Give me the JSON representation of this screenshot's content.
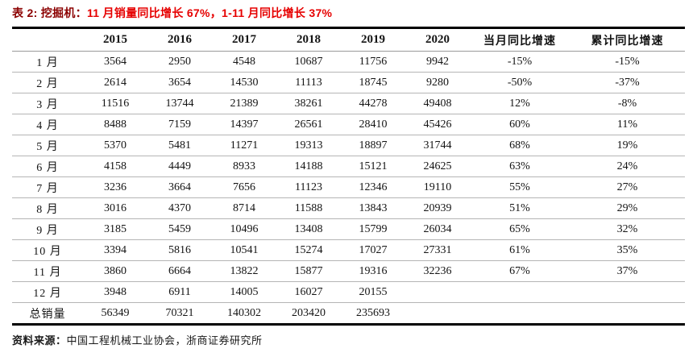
{
  "title": {
    "prefix": "表 2: 挖掘机：",
    "highlight": "11 月销量同比增长 67%，1-11 月同比增长 37%"
  },
  "colors": {
    "title_prefix": "#8b0000",
    "title_highlight": "#e60000",
    "thick_rule": "#000000",
    "thin_rule": "#b5b5b5"
  },
  "table": {
    "columns": [
      "",
      "2015",
      "2016",
      "2017",
      "2018",
      "2019",
      "2020",
      "当月同比增速",
      "累计同比增速"
    ],
    "rows": [
      {
        "label": "1 月",
        "values": [
          "3564",
          "2950",
          "4548",
          "10687",
          "11756",
          "9942",
          "-15%",
          "-15%"
        ]
      },
      {
        "label": "2 月",
        "values": [
          "2614",
          "3654",
          "14530",
          "11113",
          "18745",
          "9280",
          "-50%",
          "-37%"
        ]
      },
      {
        "label": "3 月",
        "values": [
          "11516",
          "13744",
          "21389",
          "38261",
          "44278",
          "49408",
          "12%",
          "-8%"
        ]
      },
      {
        "label": "4 月",
        "values": [
          "8488",
          "7159",
          "14397",
          "26561",
          "28410",
          "45426",
          "60%",
          "11%"
        ]
      },
      {
        "label": "5 月",
        "values": [
          "5370",
          "5481",
          "11271",
          "19313",
          "18897",
          "31744",
          "68%",
          "19%"
        ]
      },
      {
        "label": "6 月",
        "values": [
          "4158",
          "4449",
          "8933",
          "14188",
          "15121",
          "24625",
          "63%",
          "24%"
        ]
      },
      {
        "label": "7 月",
        "values": [
          "3236",
          "3664",
          "7656",
          "11123",
          "12346",
          "19110",
          "55%",
          "27%"
        ]
      },
      {
        "label": "8 月",
        "values": [
          "3016",
          "4370",
          "8714",
          "11588",
          "13843",
          "20939",
          "51%",
          "29%"
        ]
      },
      {
        "label": "9 月",
        "values": [
          "3185",
          "5459",
          "10496",
          "13408",
          "15799",
          "26034",
          "65%",
          "32%"
        ]
      },
      {
        "label": "10 月",
        "values": [
          "3394",
          "5816",
          "10541",
          "15274",
          "17027",
          "27331",
          "61%",
          "35%"
        ]
      },
      {
        "label": "11 月",
        "values": [
          "3860",
          "6664",
          "13822",
          "15877",
          "19316",
          "32236",
          "67%",
          "37%"
        ]
      },
      {
        "label": "12 月",
        "values": [
          "3948",
          "6911",
          "14005",
          "16027",
          "20155",
          "",
          "",
          ""
        ]
      },
      {
        "label": "总销量",
        "values": [
          "56349",
          "70321",
          "140302",
          "203420",
          "235693",
          "",
          "",
          ""
        ]
      }
    ]
  },
  "footer": {
    "source_label": "资料来源：",
    "source_text": "中国工程机械工业协会，浙商证券研究所"
  }
}
